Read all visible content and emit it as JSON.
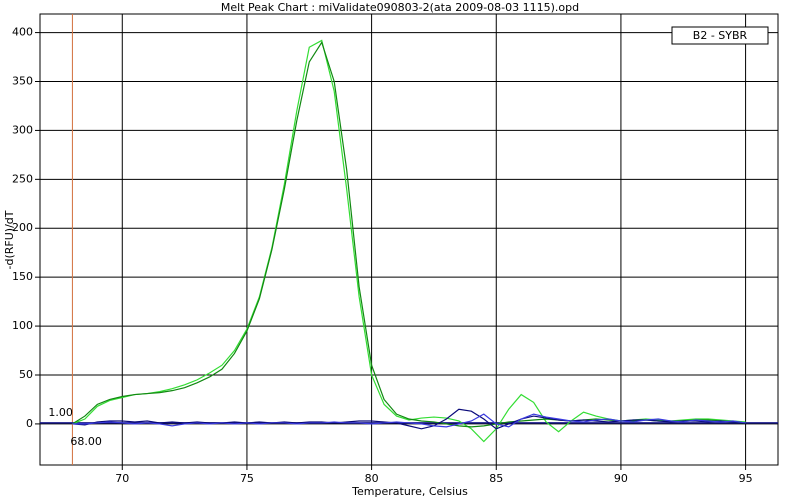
{
  "chart_data": {
    "type": "line",
    "title": "Melt Peak Chart : miValidate090803-2(ata 2009-08-03 1115).opd",
    "x_label": "Temperature, Celsius",
    "y_label": "-d(RFU)/dT",
    "legend_label": "B2 - SYBR",
    "legend_position": "upper-right",
    "grid": true,
    "xlim": [
      66.7,
      96.3
    ],
    "ylim": [
      -42,
      419
    ],
    "xticks": [
      70,
      75,
      80,
      85,
      90,
      95
    ],
    "yticks": [
      0,
      50,
      100,
      150,
      200,
      250,
      300,
      350,
      400
    ],
    "threshold": {
      "value": 1,
      "label": "1.00",
      "color": "#1a1a8c"
    },
    "cutoff": {
      "value": 68,
      "label": "68.00",
      "color": "#d2703c"
    },
    "x": [
      68,
      68.5,
      69,
      69.5,
      70,
      70.5,
      71,
      71.5,
      72,
      72.5,
      73,
      73.5,
      74,
      74.5,
      75,
      75.5,
      76,
      76.5,
      77,
      77.5,
      78,
      78.5,
      79,
      79.5,
      80,
      80.5,
      81,
      81.5,
      82,
      82.5,
      83,
      83.5,
      84,
      84.5,
      85,
      85.5,
      86,
      86.5,
      87,
      87.5,
      88,
      88.5,
      89,
      89.5,
      90,
      90.5,
      91,
      91.5,
      92,
      92.5,
      93,
      93.5,
      94,
      94.5,
      95
    ],
    "series": [
      {
        "color": "#33dd33",
        "values": [
          0,
          5,
          18,
          24,
          27,
          30,
          31,
          33,
          36,
          40,
          45,
          52,
          60,
          75,
          97,
          130,
          180,
          245,
          320,
          385,
          392,
          340,
          240,
          130,
          50,
          20,
          8,
          4,
          6,
          7,
          6,
          3,
          -5,
          -18,
          -5,
          15,
          30,
          22,
          2,
          -8,
          3,
          12,
          8,
          5,
          3,
          4,
          5,
          4,
          3,
          4,
          5,
          5,
          4,
          3,
          2
        ]
      },
      {
        "color": "#118811",
        "values": [
          0,
          8,
          20,
          25,
          28,
          30,
          31,
          32,
          34,
          37,
          42,
          48,
          56,
          72,
          95,
          128,
          178,
          240,
          310,
          370,
          390,
          350,
          260,
          140,
          60,
          25,
          10,
          5,
          3,
          2,
          0,
          -2,
          -3,
          -2,
          0,
          2,
          3,
          4,
          5,
          4,
          3,
          4,
          5,
          4,
          3,
          3,
          4,
          3,
          3,
          3,
          4,
          4,
          3,
          2,
          1
        ]
      },
      {
        "color": "#0a0a7a",
        "values": [
          0,
          -1,
          2,
          3,
          3,
          2,
          3,
          1,
          2,
          1,
          2,
          1,
          1,
          2,
          1,
          2,
          1,
          2,
          1,
          2,
          2,
          1,
          2,
          3,
          3,
          2,
          1,
          -2,
          -5,
          -2,
          5,
          15,
          13,
          5,
          -5,
          0,
          5,
          8,
          6,
          4,
          3,
          4,
          3,
          2,
          3,
          4,
          4,
          3,
          2,
          3,
          3,
          2,
          3,
          2,
          1
        ]
      },
      {
        "color": "#3a3adf",
        "values": [
          0,
          0,
          1,
          2,
          1,
          0,
          1,
          0,
          -2,
          0,
          1,
          0,
          1,
          0,
          1,
          0,
          1,
          1,
          0,
          1,
          1,
          2,
          1,
          1,
          0,
          1,
          2,
          1,
          0,
          -2,
          -3,
          0,
          3,
          10,
          0,
          -3,
          5,
          10,
          7,
          5,
          3,
          2,
          4,
          5,
          3,
          2,
          4,
          5,
          3,
          2,
          4,
          3,
          2,
          3,
          1
        ]
      }
    ]
  }
}
